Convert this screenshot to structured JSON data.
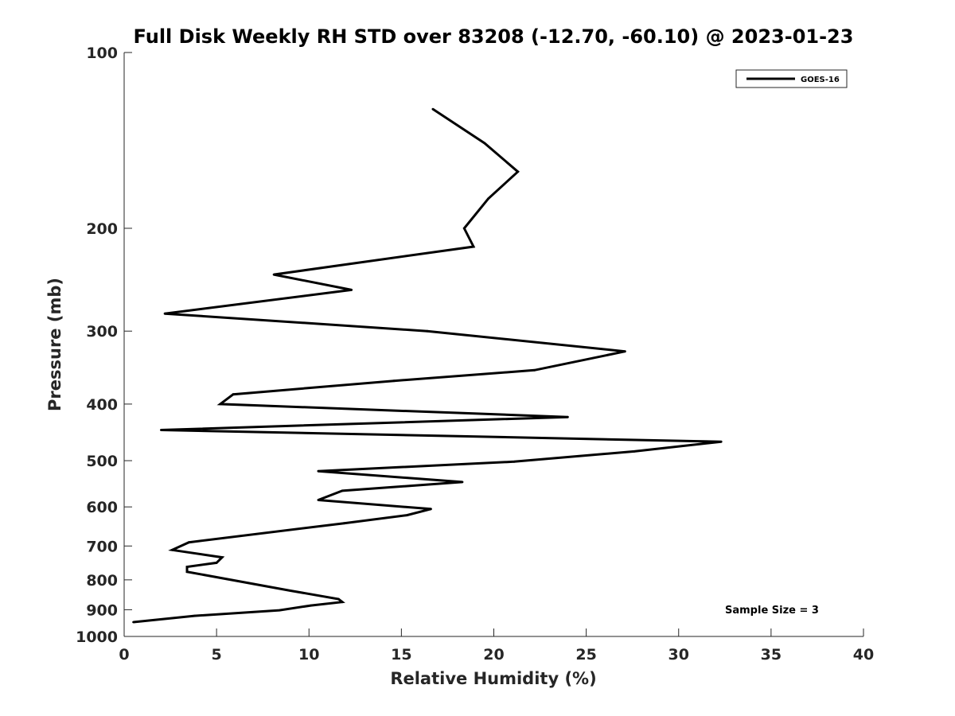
{
  "chart_data": {
    "type": "line",
    "title": "Full Disk Weekly RH STD over 83208 (-12.70, -60.10) @ 2023-01-23",
    "xlabel": "Relative Humidity (%)",
    "ylabel": "Pressure (mb)",
    "xlim": [
      0,
      40
    ],
    "ylim": [
      100,
      1000
    ],
    "y_scale": "log",
    "y_reversed": true,
    "x_ticks": [
      0,
      5,
      10,
      15,
      20,
      25,
      30,
      35,
      40
    ],
    "y_ticks": [
      100,
      200,
      300,
      400,
      500,
      600,
      700,
      800,
      900,
      1000
    ],
    "grid": false,
    "legend_position": "top-right",
    "annotation": "Sample Size = 3",
    "series": [
      {
        "name": "GOES-16",
        "color": "#000000",
        "points": [
          {
            "x": 16.7,
            "p": 125
          },
          {
            "x": 19.5,
            "p": 143
          },
          {
            "x": 21.3,
            "p": 160
          },
          {
            "x": 19.7,
            "p": 178
          },
          {
            "x": 18.4,
            "p": 200
          },
          {
            "x": 18.9,
            "p": 215
          },
          {
            "x": 8.1,
            "p": 240
          },
          {
            "x": 12.3,
            "p": 255
          },
          {
            "x": 2.2,
            "p": 280
          },
          {
            "x": 16.4,
            "p": 300
          },
          {
            "x": 27.1,
            "p": 325
          },
          {
            "x": 22.2,
            "p": 350
          },
          {
            "x": 14.6,
            "p": 365
          },
          {
            "x": 5.9,
            "p": 385
          },
          {
            "x": 5.2,
            "p": 400
          },
          {
            "x": 24.0,
            "p": 421
          },
          {
            "x": 2.0,
            "p": 443
          },
          {
            "x": 32.3,
            "p": 464
          },
          {
            "x": 27.6,
            "p": 482
          },
          {
            "x": 21.1,
            "p": 502
          },
          {
            "x": 10.5,
            "p": 521
          },
          {
            "x": 18.3,
            "p": 544
          },
          {
            "x": 11.8,
            "p": 563
          },
          {
            "x": 10.5,
            "p": 584
          },
          {
            "x": 16.6,
            "p": 605
          },
          {
            "x": 15.3,
            "p": 620
          },
          {
            "x": 11.9,
            "p": 640
          },
          {
            "x": 3.5,
            "p": 690
          },
          {
            "x": 2.6,
            "p": 711
          },
          {
            "x": 5.3,
            "p": 732
          },
          {
            "x": 5.0,
            "p": 748
          },
          {
            "x": 3.4,
            "p": 760
          },
          {
            "x": 3.4,
            "p": 775
          },
          {
            "x": 9.0,
            "p": 835
          },
          {
            "x": 11.6,
            "p": 863
          },
          {
            "x": 11.8,
            "p": 873
          },
          {
            "x": 10.1,
            "p": 885
          },
          {
            "x": 8.4,
            "p": 902
          },
          {
            "x": 3.8,
            "p": 922
          },
          {
            "x": 0.5,
            "p": 945
          }
        ]
      }
    ]
  }
}
